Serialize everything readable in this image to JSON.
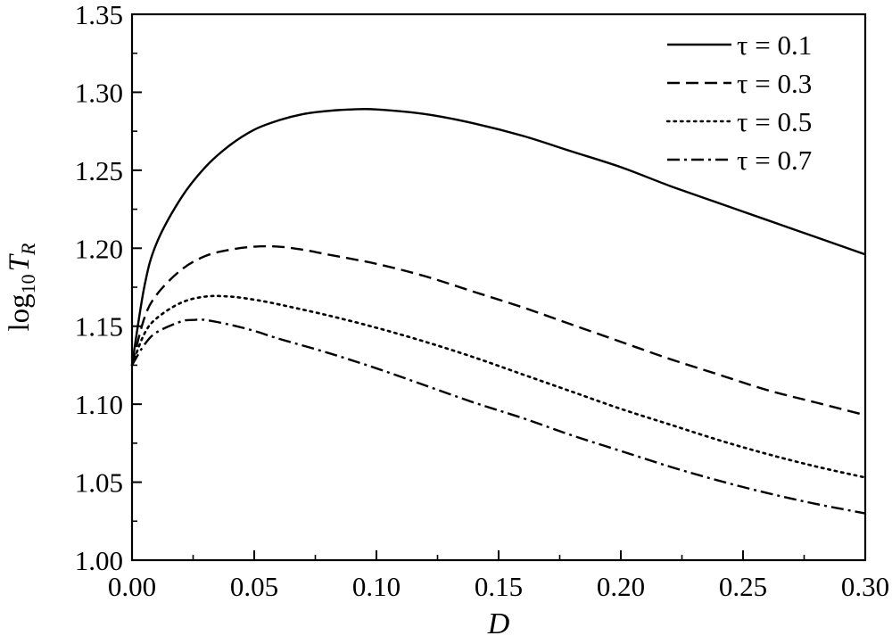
{
  "chart_data": {
    "type": "line",
    "xlabel": "D",
    "ylabel": {
      "base": "log",
      "base_sub": "10",
      "var": "T",
      "var_sub": "R"
    },
    "xlim": [
      0.0,
      0.3
    ],
    "ylim": [
      1.0,
      1.35
    ],
    "x_ticks": [
      "0.00",
      "0.05",
      "0.10",
      "0.15",
      "0.20",
      "0.25",
      "0.30"
    ],
    "y_ticks": [
      "1.00",
      "1.05",
      "1.10",
      "1.15",
      "1.20",
      "1.25",
      "1.30",
      "1.35"
    ],
    "grid": false,
    "legend_position": "top-right",
    "series": [
      {
        "name": "τ = 0.1",
        "line_style": "solid",
        "x": [
          0.0,
          0.005,
          0.01,
          0.02,
          0.03,
          0.04,
          0.05,
          0.06,
          0.07,
          0.08,
          0.09,
          0.1,
          0.12,
          0.14,
          0.16,
          0.18,
          0.2,
          0.22,
          0.24,
          0.26,
          0.28,
          0.3
        ],
        "y": [
          1.125,
          1.175,
          1.203,
          1.232,
          1.252,
          1.266,
          1.276,
          1.282,
          1.286,
          1.288,
          1.289,
          1.289,
          1.286,
          1.28,
          1.272,
          1.262,
          1.252,
          1.24,
          1.229,
          1.218,
          1.207,
          1.196
        ]
      },
      {
        "name": "τ = 0.3",
        "line_style": "dashed",
        "x": [
          0.0,
          0.005,
          0.01,
          0.02,
          0.03,
          0.04,
          0.05,
          0.06,
          0.07,
          0.08,
          0.1,
          0.12,
          0.14,
          0.16,
          0.18,
          0.2,
          0.22,
          0.24,
          0.26,
          0.28,
          0.3
        ],
        "y": [
          1.125,
          1.155,
          1.17,
          1.186,
          1.195,
          1.199,
          1.201,
          1.201,
          1.199,
          1.196,
          1.19,
          1.182,
          1.172,
          1.162,
          1.151,
          1.14,
          1.129,
          1.119,
          1.109,
          1.101,
          1.093
        ]
      },
      {
        "name": "τ = 0.5",
        "line_style": "dotted",
        "x": [
          0.0,
          0.005,
          0.01,
          0.02,
          0.03,
          0.04,
          0.05,
          0.06,
          0.08,
          0.1,
          0.12,
          0.14,
          0.16,
          0.18,
          0.2,
          0.22,
          0.24,
          0.26,
          0.28,
          0.3
        ],
        "y": [
          1.125,
          1.145,
          1.155,
          1.165,
          1.169,
          1.169,
          1.167,
          1.164,
          1.157,
          1.149,
          1.14,
          1.13,
          1.119,
          1.108,
          1.097,
          1.087,
          1.077,
          1.068,
          1.06,
          1.053
        ]
      },
      {
        "name": "τ = 0.7",
        "line_style": "dashdot",
        "x": [
          0.0,
          0.005,
          0.01,
          0.02,
          0.025,
          0.03,
          0.04,
          0.05,
          0.06,
          0.08,
          0.1,
          0.12,
          0.14,
          0.16,
          0.18,
          0.2,
          0.22,
          0.24,
          0.26,
          0.28,
          0.3
        ],
        "y": [
          1.125,
          1.138,
          1.146,
          1.153,
          1.154,
          1.154,
          1.151,
          1.147,
          1.142,
          1.133,
          1.123,
          1.112,
          1.101,
          1.091,
          1.08,
          1.07,
          1.06,
          1.051,
          1.043,
          1.036,
          1.03
        ]
      }
    ]
  }
}
